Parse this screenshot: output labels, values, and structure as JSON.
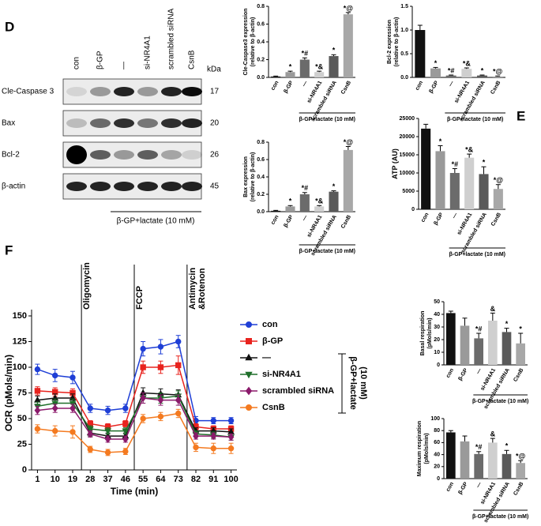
{
  "panel_labels": [
    "D",
    "E",
    "F"
  ],
  "blot": {
    "lanes": [
      "con",
      "β-GP",
      "—",
      "si-NR4A1",
      "scrambled siRNA",
      "CsnB"
    ],
    "kda_header": "kDa",
    "rows": [
      {
        "name": "Cle-Caspase 3",
        "kda": 17
      },
      {
        "name": "Bax",
        "kda": 20
      },
      {
        "name": "Bcl-2",
        "kda": 26
      },
      {
        "name": "β-actin",
        "kda": 45
      }
    ],
    "group_label": "β-GP+lactate (10 mM)"
  },
  "chart_data": [
    {
      "type": "bar",
      "ylabel": [
        "Cle-Caspase3 expression",
        "(relative to β-actin)"
      ],
      "categories": [
        "con",
        "β-GP",
        "—",
        "si-NR4A1",
        "scrambled siRNA",
        "CsnB"
      ],
      "values": [
        0.01,
        0.06,
        0.2,
        0.06,
        0.24,
        0.71
      ],
      "errors": [
        0.005,
        0.01,
        0.02,
        0.01,
        0.015,
        0.02
      ],
      "annotations": [
        null,
        "*",
        "*#",
        "*&",
        "*",
        "*@"
      ],
      "colors": [
        "#111111",
        "#9a9a9a",
        "#6b6b6b",
        "#cfcfcf",
        "#5a5a5a",
        "#a8a8a8"
      ],
      "ylim": [
        0,
        0.8
      ],
      "yticks": [
        {
          "value": 0,
          "label": "0.0"
        },
        0.2,
        0.4,
        0.6,
        0.8
      ],
      "group_label": "β-GP+lactate (10 mM)"
    },
    {
      "type": "bar",
      "ylabel": [
        "Bcl-2 expression",
        "(relative to β-actin)"
      ],
      "categories": [
        "con",
        "β-GP",
        "—",
        "si-NR4A1",
        "scrambled siRNA",
        "CsnB"
      ],
      "values": [
        1.0,
        0.19,
        0.04,
        0.18,
        0.04,
        0.02
      ],
      "errors": [
        0.1,
        0.02,
        0.01,
        0.02,
        0.01,
        0.01
      ],
      "annotations": [
        null,
        "*",
        "*#",
        "*&",
        "*",
        "*@"
      ],
      "colors": [
        "#111111",
        "#9a9a9a",
        "#6b6b6b",
        "#cfcfcf",
        "#5a5a5a",
        "#a8a8a8"
      ],
      "ylim": [
        0,
        1.5
      ],
      "yticks": [
        {
          "value": 0,
          "label": "0.0"
        },
        0.5,
        {
          "value": 1,
          "label": "1.0"
        },
        1.5
      ],
      "group_label": "β-GP+lactate (10 mM)"
    },
    {
      "type": "bar",
      "ylabel": [
        "Bax expression",
        "(relative to β-actin)"
      ],
      "categories": [
        "con",
        "β-GP",
        "—",
        "si-NR4A1",
        "scrambled siRNA",
        "CsnB"
      ],
      "values": [
        0.01,
        0.06,
        0.2,
        0.06,
        0.23,
        0.71
      ],
      "errors": [
        0.005,
        0.01,
        0.02,
        0.01,
        0.01,
        0.04
      ],
      "annotations": [
        null,
        "*",
        "*#",
        "*&",
        "*",
        "*@"
      ],
      "colors": [
        "#111111",
        "#9a9a9a",
        "#6b6b6b",
        "#cfcfcf",
        "#5a5a5a",
        "#a8a8a8"
      ],
      "ylim": [
        0,
        0.8
      ],
      "yticks": [
        {
          "value": 0,
          "label": "0.0"
        },
        0.2,
        0.4,
        0.6,
        0.8
      ],
      "group_label": "β-GP+lactate (10 mM)"
    },
    {
      "type": "bar",
      "ylabel": "ATP (AU)",
      "categories": [
        "con",
        "β-GP",
        "—",
        "si-NR4A1",
        "scrambled siRNA",
        "CsnB"
      ],
      "values": [
        22200,
        16000,
        10000,
        14200,
        9700,
        5600
      ],
      "errors": [
        1200,
        1500,
        1200,
        1000,
        2000,
        1200
      ],
      "annotations": [
        null,
        "*",
        "*#",
        "*&",
        "*",
        "*@"
      ],
      "colors": [
        "#111111",
        "#9a9a9a",
        "#6b6b6b",
        "#cfcfcf",
        "#5a5a5a",
        "#a8a8a8"
      ],
      "ylim": [
        0,
        25000
      ],
      "yticks": [
        0,
        5000,
        10000,
        15000,
        20000,
        25000
      ],
      "group_label": "β-GP+lactate (10 mM)"
    },
    {
      "type": "bar",
      "ylabel": [
        "Basal respiration",
        "(pMols/min)"
      ],
      "categories": [
        "con",
        "β-GP",
        "—",
        "si-NR4A1",
        "scrambled siRNA",
        "CsnB"
      ],
      "values": [
        41,
        31,
        21,
        35,
        26,
        17
      ],
      "errors": [
        1.5,
        6,
        4,
        6,
        3,
        8
      ],
      "annotations": [
        null,
        null,
        "*#",
        "&",
        "*",
        "*"
      ],
      "colors": [
        "#111111",
        "#9a9a9a",
        "#6b6b6b",
        "#cfcfcf",
        "#5a5a5a",
        "#a8a8a8"
      ],
      "ylim": [
        0,
        50
      ],
      "yticks": [
        0,
        10,
        20,
        30,
        40,
        50
      ],
      "group_label": "β-GP+lactate (10 mM)"
    },
    {
      "type": "bar",
      "ylabel": [
        "Maximum respiration",
        "(pMols/min)"
      ],
      "categories": [
        "con",
        "β-GP",
        "—",
        "si-NR4A1",
        "scrambled siRNA",
        "CsnB"
      ],
      "values": [
        77,
        62,
        41,
        60,
        41,
        26
      ],
      "errors": [
        3,
        9,
        4,
        7,
        6,
        4
      ],
      "annotations": [
        null,
        null,
        "*#",
        "&",
        "*",
        "*@"
      ],
      "colors": [
        "#111111",
        "#9a9a9a",
        "#6b6b6b",
        "#cfcfcf",
        "#5a5a5a",
        "#a8a8a8"
      ],
      "ylim": [
        0,
        100
      ],
      "yticks": [
        0,
        20,
        40,
        60,
        80,
        100
      ],
      "group_label": "β-GP+lactate (10 mM)"
    },
    {
      "type": "line",
      "ylabel": "OCR (pMols/min)",
      "xlabel": "Time (min)",
      "x": [
        1,
        10,
        19,
        28,
        37,
        46,
        55,
        64,
        73,
        82,
        91,
        100
      ],
      "xlim": [
        -2,
        103
      ],
      "xticks": [
        1,
        10,
        19,
        28,
        37,
        46,
        55,
        64,
        73,
        82,
        91,
        100
      ],
      "ylim": [
        0,
        150
      ],
      "yticks": [
        0,
        25,
        50,
        75,
        100,
        125,
        150
      ],
      "events": [
        {
          "x": 23.5,
          "lines": [
            "Oligomycin"
          ]
        },
        {
          "x": 50.5,
          "lines": [
            "FCCP"
          ]
        },
        {
          "x": 77.5,
          "lines": [
            "Antimycin",
            "&Rotenon"
          ]
        }
      ],
      "series": [
        {
          "name": "con",
          "color": "#1f3fd6",
          "marker": "circle",
          "values": [
            98,
            92,
            90,
            60,
            58,
            60,
            118,
            120,
            125,
            48,
            48,
            48
          ],
          "errors": [
            5,
            6,
            6,
            4,
            4,
            4,
            7,
            7,
            6,
            4,
            3,
            3
          ]
        },
        {
          "name": "β-GP",
          "color": "#e8231e",
          "marker": "square",
          "values": [
            77,
            76,
            75,
            45,
            42,
            45,
            100,
            100,
            102,
            42,
            40,
            40
          ],
          "errors": [
            4,
            4,
            4,
            3,
            3,
            3,
            6,
            6,
            9,
            3,
            3,
            3
          ]
        },
        {
          "name": "—",
          "color": "#111111",
          "marker": "triangle",
          "values": [
            68,
            70,
            70,
            36,
            33,
            33,
            75,
            74,
            73,
            38,
            38,
            37
          ],
          "errors": [
            4,
            4,
            4,
            3,
            3,
            3,
            5,
            5,
            5,
            3,
            3,
            3
          ]
        },
        {
          "name": "si-NR4A1",
          "color": "#1f6f2a",
          "marker": "triangle-down",
          "values": [
            62,
            65,
            65,
            40,
            38,
            38,
            70,
            70,
            72,
            35,
            34,
            32
          ],
          "errors": [
            4,
            4,
            4,
            3,
            3,
            3,
            5,
            5,
            5,
            3,
            3,
            3
          ]
        },
        {
          "name": "scrambled siRNA",
          "color": "#8b1a6b",
          "marker": "diamond",
          "values": [
            58,
            60,
            60,
            35,
            30,
            30,
            70,
            68,
            68,
            33,
            33,
            32
          ],
          "errors": [
            4,
            4,
            4,
            3,
            3,
            3,
            5,
            5,
            5,
            3,
            3,
            3
          ]
        },
        {
          "name": "CsnB",
          "color": "#f47a20",
          "marker": "circle",
          "values": [
            40,
            38,
            37,
            20,
            17,
            18,
            50,
            52,
            55,
            22,
            21,
            21
          ],
          "errors": [
            4,
            5,
            6,
            3,
            3,
            3,
            4,
            4,
            4,
            4,
            5,
            5
          ]
        }
      ],
      "bracket_label": [
        "β-GP+lactate",
        "(10 mM)"
      ]
    }
  ]
}
